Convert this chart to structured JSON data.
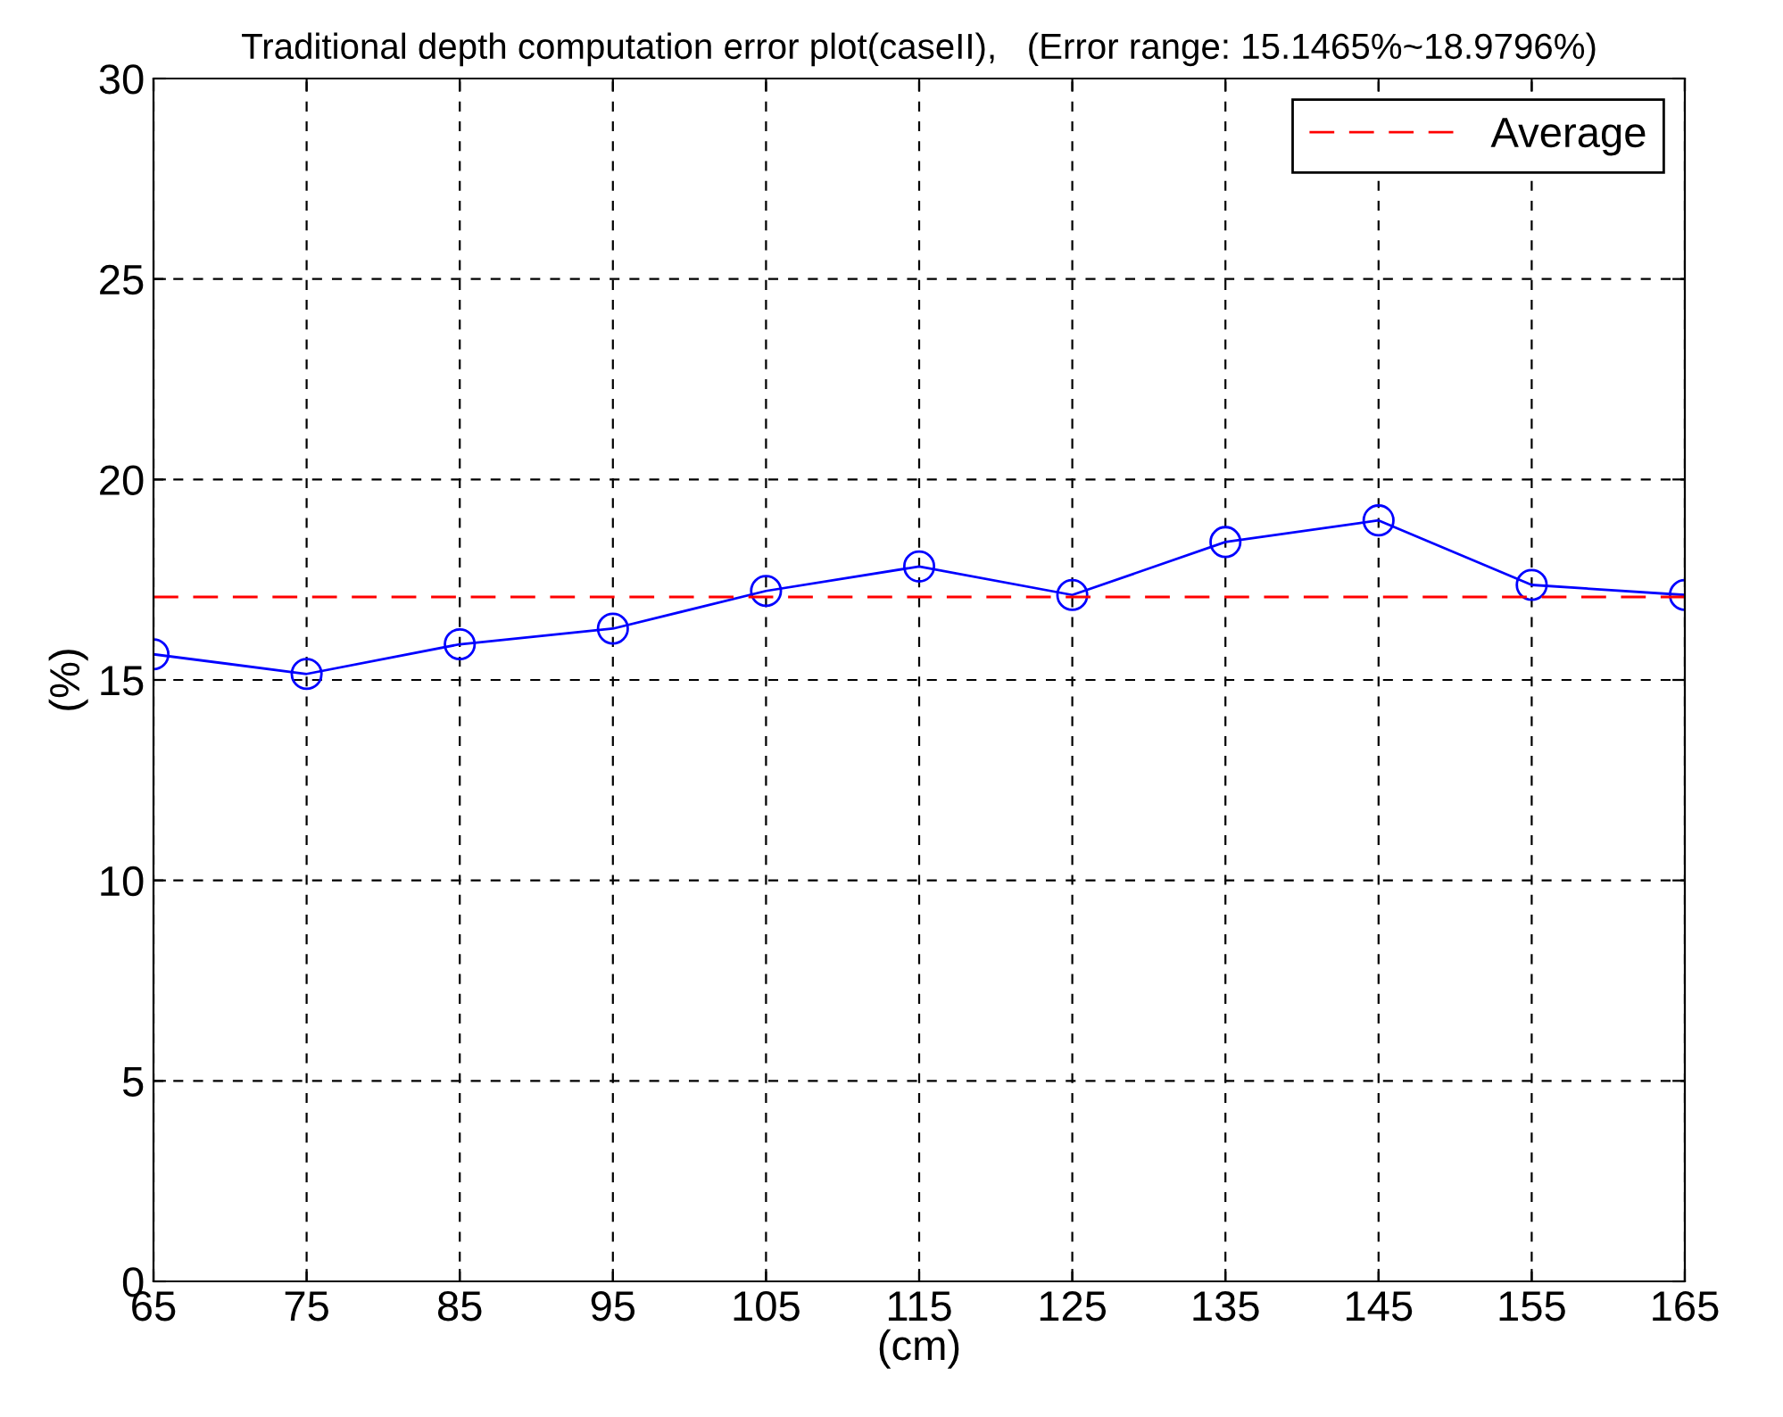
{
  "chart_data": {
    "type": "line",
    "title": "Traditional depth computation error plot(caseII),   (Error range: 15.1465%~18.9796%)",
    "xlabel": "(cm)",
    "ylabel": "(%)",
    "x": [
      65,
      75,
      85,
      95,
      105,
      115,
      125,
      135,
      145,
      155,
      165
    ],
    "series": [
      {
        "color": "#0000ff",
        "values": [
          15.64,
          15.15,
          15.89,
          16.28,
          17.22,
          17.83,
          17.12,
          18.44,
          18.98,
          17.37,
          17.12
        ]
      }
    ],
    "ref_lines": [
      {
        "axis": "y",
        "value": 17.07,
        "label": "Average",
        "color": "#ff0000",
        "line_style": "dashed"
      }
    ],
    "xlim": [
      65,
      165
    ],
    "xticks": [
      65,
      75,
      85,
      95,
      105,
      115,
      125,
      135,
      145,
      155,
      165
    ],
    "ylim": [
      0,
      30
    ],
    "yticks": [
      0,
      5,
      10,
      15,
      20,
      25,
      30
    ],
    "grid": true,
    "legend": "top right",
    "marker": "circle",
    "line_style": "solid"
  }
}
